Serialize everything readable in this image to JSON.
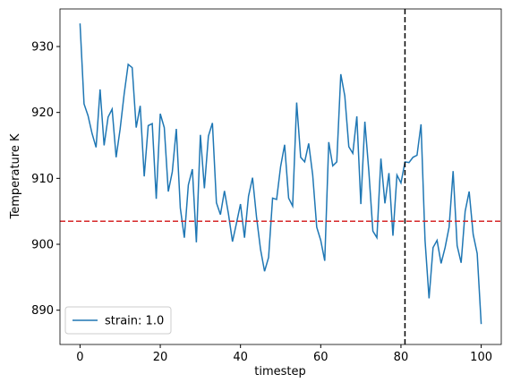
{
  "chart_data": {
    "type": "line",
    "xlabel": "timestep",
    "ylabel": "Temperature K",
    "x": [
      0,
      1,
      2,
      3,
      4,
      5,
      6,
      7,
      8,
      9,
      10,
      11,
      12,
      13,
      14,
      15,
      16,
      17,
      18,
      19,
      20,
      21,
      22,
      23,
      24,
      25,
      26,
      27,
      28,
      29,
      30,
      31,
      32,
      33,
      34,
      35,
      36,
      37,
      38,
      39,
      40,
      41,
      42,
      43,
      44,
      45,
      46,
      47,
      48,
      49,
      50,
      51,
      52,
      53,
      54,
      55,
      56,
      57,
      58,
      59,
      60,
      61,
      62,
      63,
      64,
      65,
      66,
      67,
      68,
      69,
      70,
      71,
      72,
      73,
      74,
      75,
      76,
      77,
      78,
      79,
      80,
      81,
      82,
      83,
      84,
      85,
      86,
      87,
      88,
      89,
      90,
      91,
      92,
      93,
      94,
      95,
      96,
      97,
      98,
      99,
      100
    ],
    "series": [
      {
        "name": "strain: 1.0",
        "color": "#1f77b4",
        "values": [
          933.5,
          921.3,
          919.5,
          916.8,
          914.7,
          923.5,
          915.0,
          919.3,
          920.5,
          913.2,
          917.5,
          922.8,
          927.3,
          926.8,
          917.7,
          921.0,
          910.3,
          918.0,
          918.3,
          906.9,
          919.8,
          917.7,
          908.0,
          911.0,
          917.5,
          905.5,
          901.0,
          909.0,
          911.4,
          900.3,
          916.6,
          908.5,
          916.4,
          918.4,
          906.3,
          904.5,
          908.1,
          904.6,
          900.4,
          903.2,
          906.1,
          901.0,
          907.3,
          910.1,
          904.1,
          899.2,
          895.9,
          898.0,
          907.0,
          906.8,
          911.8,
          915.1,
          907.0,
          905.8,
          921.5,
          913.2,
          912.5,
          915.3,
          910.5,
          902.6,
          900.6,
          897.5,
          915.5,
          911.9,
          912.5,
          925.8,
          922.5,
          914.8,
          913.8,
          919.4,
          906.1,
          918.6,
          911.0,
          902.0,
          901.0,
          913.0,
          906.2,
          910.8,
          901.3,
          910.5,
          909.3,
          912.5,
          912.4,
          913.2,
          913.5,
          918.2,
          900.6,
          891.8,
          899.5,
          900.6,
          897.1,
          899.5,
          902.6,
          911.1,
          899.8,
          897.2,
          905.0,
          908.0,
          901.5,
          898.6,
          887.9
        ]
      }
    ],
    "xlim": [
      -5,
      105
    ],
    "xticks": [
      0,
      20,
      40,
      60,
      80,
      100
    ],
    "ylim": [
      884.8,
      935.7
    ],
    "yticks": [
      890,
      900,
      910,
      920,
      930
    ],
    "hline": {
      "value": 903.5,
      "color": "#d62728"
    },
    "vline": {
      "value": 81,
      "color": "#000000"
    },
    "legend": "lower left"
  }
}
